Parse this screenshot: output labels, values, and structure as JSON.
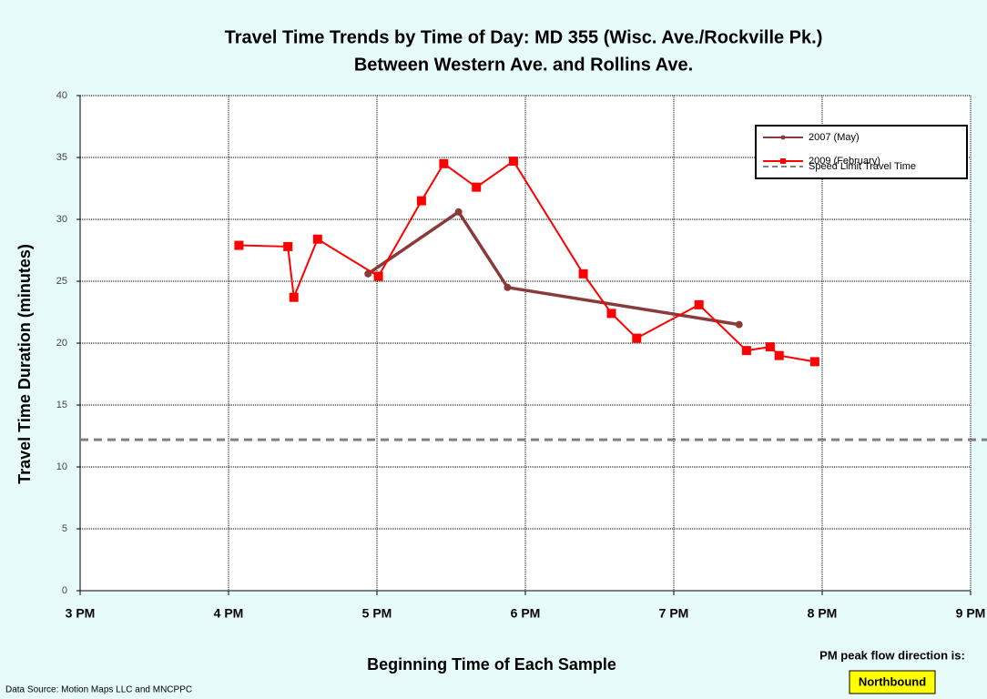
{
  "chart_data": {
    "type": "line",
    "title": "Travel Time Trends by Time of Day: MD 355 (Wisc. Ave./Rockville Pk.)",
    "subtitle": "Between Western Ave. and Rollins Ave.",
    "xlabel": "Beginning Time of Each Sample",
    "ylabel": "Travel Time Duration (minutes)",
    "xlim": [
      15,
      21
    ],
    "xticks": [
      {
        "value": 15,
        "label": "3 PM"
      },
      {
        "value": 16,
        "label": "4 PM"
      },
      {
        "value": 17,
        "label": "5 PM"
      },
      {
        "value": 18,
        "label": "6 PM"
      },
      {
        "value": 19,
        "label": "7 PM"
      },
      {
        "value": 20,
        "label": "8 PM"
      },
      {
        "value": 21,
        "label": "9 PM"
      }
    ],
    "ylim": [
      0,
      40
    ],
    "yticks": [
      0,
      5,
      10,
      15,
      20,
      25,
      30,
      35,
      40
    ],
    "grid": true,
    "legend": "upper right",
    "series": [
      {
        "name": "2007 (May)",
        "color": "#8b3a3a",
        "marker": "circle",
        "x": [
          16.94,
          17.55,
          17.88,
          19.44
        ],
        "values": [
          25.6,
          30.6,
          24.5,
          21.5
        ]
      },
      {
        "name": "2009 (February)",
        "color": "#ff0000",
        "marker": "square",
        "x": [
          16.07,
          16.4,
          16.44,
          16.6,
          17.01,
          17.3,
          17.45,
          17.67,
          17.92,
          18.39,
          18.58,
          18.75,
          19.17,
          19.49,
          19.65,
          19.71,
          19.95
        ],
        "values": [
          27.9,
          27.8,
          23.7,
          28.4,
          25.4,
          31.5,
          34.5,
          32.6,
          34.7,
          25.6,
          22.4,
          20.4,
          23.1,
          19.4,
          19.7,
          19.0,
          18.5
        ]
      }
    ],
    "reference_lines": [
      {
        "name": "Speed Limit Travel Time",
        "value": 12.2,
        "color": "#808080"
      }
    ],
    "source": "Data Source: Motion Maps LLC and MNCPPC",
    "direction_label": "PM peak flow direction is:",
    "direction": "Northbound"
  }
}
